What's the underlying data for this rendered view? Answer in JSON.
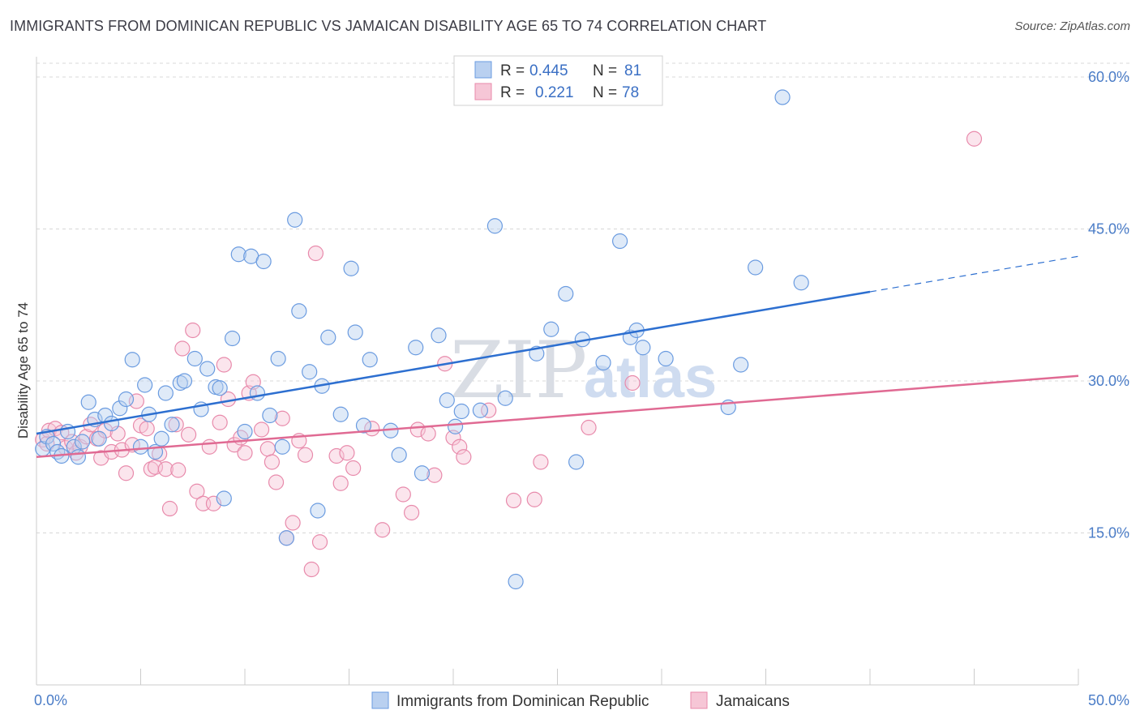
{
  "title": "IMMIGRANTS FROM DOMINICAN REPUBLIC VS JAMAICAN DISABILITY AGE 65 TO 74 CORRELATION CHART",
  "source": "Source: ZipAtlas.com",
  "watermark": {
    "part1": "ZIP",
    "part2": "atlas"
  },
  "legend": {
    "r_label": "R =",
    "n_label": "N =",
    "series1": {
      "r": "0.445",
      "n": "81"
    },
    "series2": {
      "r": "0.221",
      "n": "78"
    }
  },
  "chart_data": {
    "type": "scatter",
    "title": "IMMIGRANTS FROM DOMINICAN REPUBLIC VS JAMAICAN DISABILITY AGE 65 TO 74 CORRELATION CHART",
    "xlabel": "",
    "ylabel": "Disability Age 65 to 74",
    "xlim": [
      0,
      50
    ],
    "ylim": [
      0,
      62
    ],
    "x_tick_labels": [
      "0.0%",
      "50.0%"
    ],
    "y_ticks": [
      15,
      30,
      45,
      60
    ],
    "y_tick_labels": [
      "15.0%",
      "30.0%",
      "45.0%",
      "60.0%"
    ],
    "grid": true,
    "legend_position": "top-center",
    "series": [
      {
        "name": "Immigrants from Dominican Republic",
        "color": "#6a9be0",
        "fill": "#b9d0f0",
        "trend": {
          "x0": 0,
          "y0": 24.8,
          "x1": 40,
          "y1": 38.8,
          "dash_to_x": 50,
          "dash_to_y": 42.3
        },
        "points": [
          [
            0.3,
            23.3
          ],
          [
            0.5,
            24.5
          ],
          [
            0.8,
            23.8
          ],
          [
            1.0,
            23.0
          ],
          [
            1.2,
            22.6
          ],
          [
            1.5,
            25.0
          ],
          [
            1.8,
            23.5
          ],
          [
            2.0,
            22.5
          ],
          [
            2.2,
            24.0
          ],
          [
            2.5,
            27.9
          ],
          [
            2.8,
            26.2
          ],
          [
            3.0,
            24.3
          ],
          [
            3.3,
            26.6
          ],
          [
            3.6,
            25.8
          ],
          [
            4.0,
            27.3
          ],
          [
            4.3,
            28.2
          ],
          [
            4.6,
            32.1
          ],
          [
            5.0,
            23.5
          ],
          [
            5.2,
            29.6
          ],
          [
            5.4,
            26.7
          ],
          [
            5.7,
            23.0
          ],
          [
            6.0,
            24.3
          ],
          [
            6.2,
            28.8
          ],
          [
            6.5,
            25.7
          ],
          [
            6.9,
            29.8
          ],
          [
            7.1,
            30.0
          ],
          [
            7.6,
            32.2
          ],
          [
            7.9,
            27.2
          ],
          [
            8.2,
            31.2
          ],
          [
            8.6,
            29.4
          ],
          [
            8.8,
            29.3
          ],
          [
            9.0,
            18.4
          ],
          [
            9.4,
            34.2
          ],
          [
            9.7,
            42.5
          ],
          [
            10.0,
            25.0
          ],
          [
            10.3,
            42.3
          ],
          [
            10.6,
            28.8
          ],
          [
            10.9,
            41.8
          ],
          [
            11.2,
            26.6
          ],
          [
            11.6,
            32.2
          ],
          [
            11.8,
            23.5
          ],
          [
            12.0,
            14.5
          ],
          [
            12.4,
            45.9
          ],
          [
            12.6,
            36.9
          ],
          [
            13.1,
            30.9
          ],
          [
            13.5,
            17.2
          ],
          [
            13.7,
            29.5
          ],
          [
            14.0,
            34.3
          ],
          [
            14.6,
            26.7
          ],
          [
            15.1,
            41.1
          ],
          [
            15.3,
            34.8
          ],
          [
            15.7,
            25.6
          ],
          [
            16.0,
            32.1
          ],
          [
            17.0,
            25.1
          ],
          [
            17.4,
            22.7
          ],
          [
            18.2,
            33.3
          ],
          [
            18.5,
            20.9
          ],
          [
            19.3,
            34.5
          ],
          [
            19.7,
            28.1
          ],
          [
            20.1,
            25.5
          ],
          [
            20.4,
            27.0
          ],
          [
            21.3,
            27.1
          ],
          [
            22.0,
            45.3
          ],
          [
            22.5,
            28.3
          ],
          [
            23.0,
            10.2
          ],
          [
            24.0,
            32.7
          ],
          [
            24.7,
            35.1
          ],
          [
            25.4,
            38.6
          ],
          [
            25.9,
            22.0
          ],
          [
            26.2,
            34.1
          ],
          [
            27.2,
            31.8
          ],
          [
            28.0,
            43.8
          ],
          [
            28.5,
            34.3
          ],
          [
            28.8,
            35.0
          ],
          [
            29.1,
            33.3
          ],
          [
            30.2,
            32.2
          ],
          [
            33.2,
            27.4
          ],
          [
            33.8,
            31.6
          ],
          [
            34.5,
            41.2
          ],
          [
            35.8,
            58.0
          ],
          [
            36.7,
            39.7
          ]
        ]
      },
      {
        "name": "Jamaicans",
        "color": "#e88aab",
        "fill": "#f6c6d6",
        "trend": {
          "x0": 0,
          "y0": 22.5,
          "x1": 50,
          "y1": 30.5
        },
        "points": [
          [
            0.3,
            24.2
          ],
          [
            0.5,
            23.8
          ],
          [
            0.6,
            25.1
          ],
          [
            0.9,
            25.3
          ],
          [
            1.2,
            24.9
          ],
          [
            1.4,
            23.4
          ],
          [
            1.7,
            24.0
          ],
          [
            1.9,
            22.9
          ],
          [
            2.1,
            23.5
          ],
          [
            2.4,
            24.5
          ],
          [
            2.6,
            25.7
          ],
          [
            2.9,
            24.3
          ],
          [
            3.1,
            22.4
          ],
          [
            3.3,
            25.1
          ],
          [
            3.6,
            23.0
          ],
          [
            3.9,
            24.8
          ],
          [
            4.1,
            23.2
          ],
          [
            4.3,
            20.9
          ],
          [
            4.6,
            23.7
          ],
          [
            4.8,
            28.0
          ],
          [
            5.0,
            25.6
          ],
          [
            5.3,
            25.3
          ],
          [
            5.5,
            21.3
          ],
          [
            5.7,
            21.5
          ],
          [
            5.9,
            22.8
          ],
          [
            6.2,
            21.3
          ],
          [
            6.4,
            17.4
          ],
          [
            6.7,
            25.7
          ],
          [
            6.8,
            21.2
          ],
          [
            7.0,
            33.2
          ],
          [
            7.3,
            24.7
          ],
          [
            7.5,
            35.0
          ],
          [
            7.7,
            19.1
          ],
          [
            8.0,
            17.9
          ],
          [
            8.3,
            23.5
          ],
          [
            8.5,
            17.9
          ],
          [
            8.8,
            25.9
          ],
          [
            9.0,
            31.6
          ],
          [
            9.2,
            28.2
          ],
          [
            9.5,
            23.7
          ],
          [
            9.8,
            24.4
          ],
          [
            10.0,
            22.9
          ],
          [
            10.2,
            28.8
          ],
          [
            10.4,
            29.9
          ],
          [
            10.8,
            25.2
          ],
          [
            11.1,
            23.3
          ],
          [
            11.3,
            22.0
          ],
          [
            11.5,
            20.0
          ],
          [
            11.8,
            26.3
          ],
          [
            12.0,
            14.5
          ],
          [
            12.3,
            16.0
          ],
          [
            12.6,
            24.1
          ],
          [
            12.9,
            22.7
          ],
          [
            13.2,
            11.4
          ],
          [
            13.4,
            42.6
          ],
          [
            13.6,
            14.1
          ],
          [
            14.4,
            22.6
          ],
          [
            14.6,
            19.9
          ],
          [
            14.9,
            22.9
          ],
          [
            15.2,
            21.4
          ],
          [
            16.1,
            25.3
          ],
          [
            16.6,
            15.3
          ],
          [
            17.6,
            18.8
          ],
          [
            18.0,
            17.0
          ],
          [
            18.3,
            25.2
          ],
          [
            18.8,
            24.8
          ],
          [
            19.1,
            20.7
          ],
          [
            19.6,
            31.7
          ],
          [
            20.0,
            24.4
          ],
          [
            20.3,
            23.5
          ],
          [
            20.5,
            22.5
          ],
          [
            21.7,
            27.1
          ],
          [
            22.9,
            18.2
          ],
          [
            23.9,
            18.3
          ],
          [
            24.2,
            22.0
          ],
          [
            26.5,
            25.4
          ],
          [
            28.6,
            29.8
          ],
          [
            45.0,
            53.9
          ]
        ]
      }
    ]
  },
  "bottom_legend": {
    "series1": "Immigrants from Dominican Republic",
    "series2": "Jamaicans"
  }
}
